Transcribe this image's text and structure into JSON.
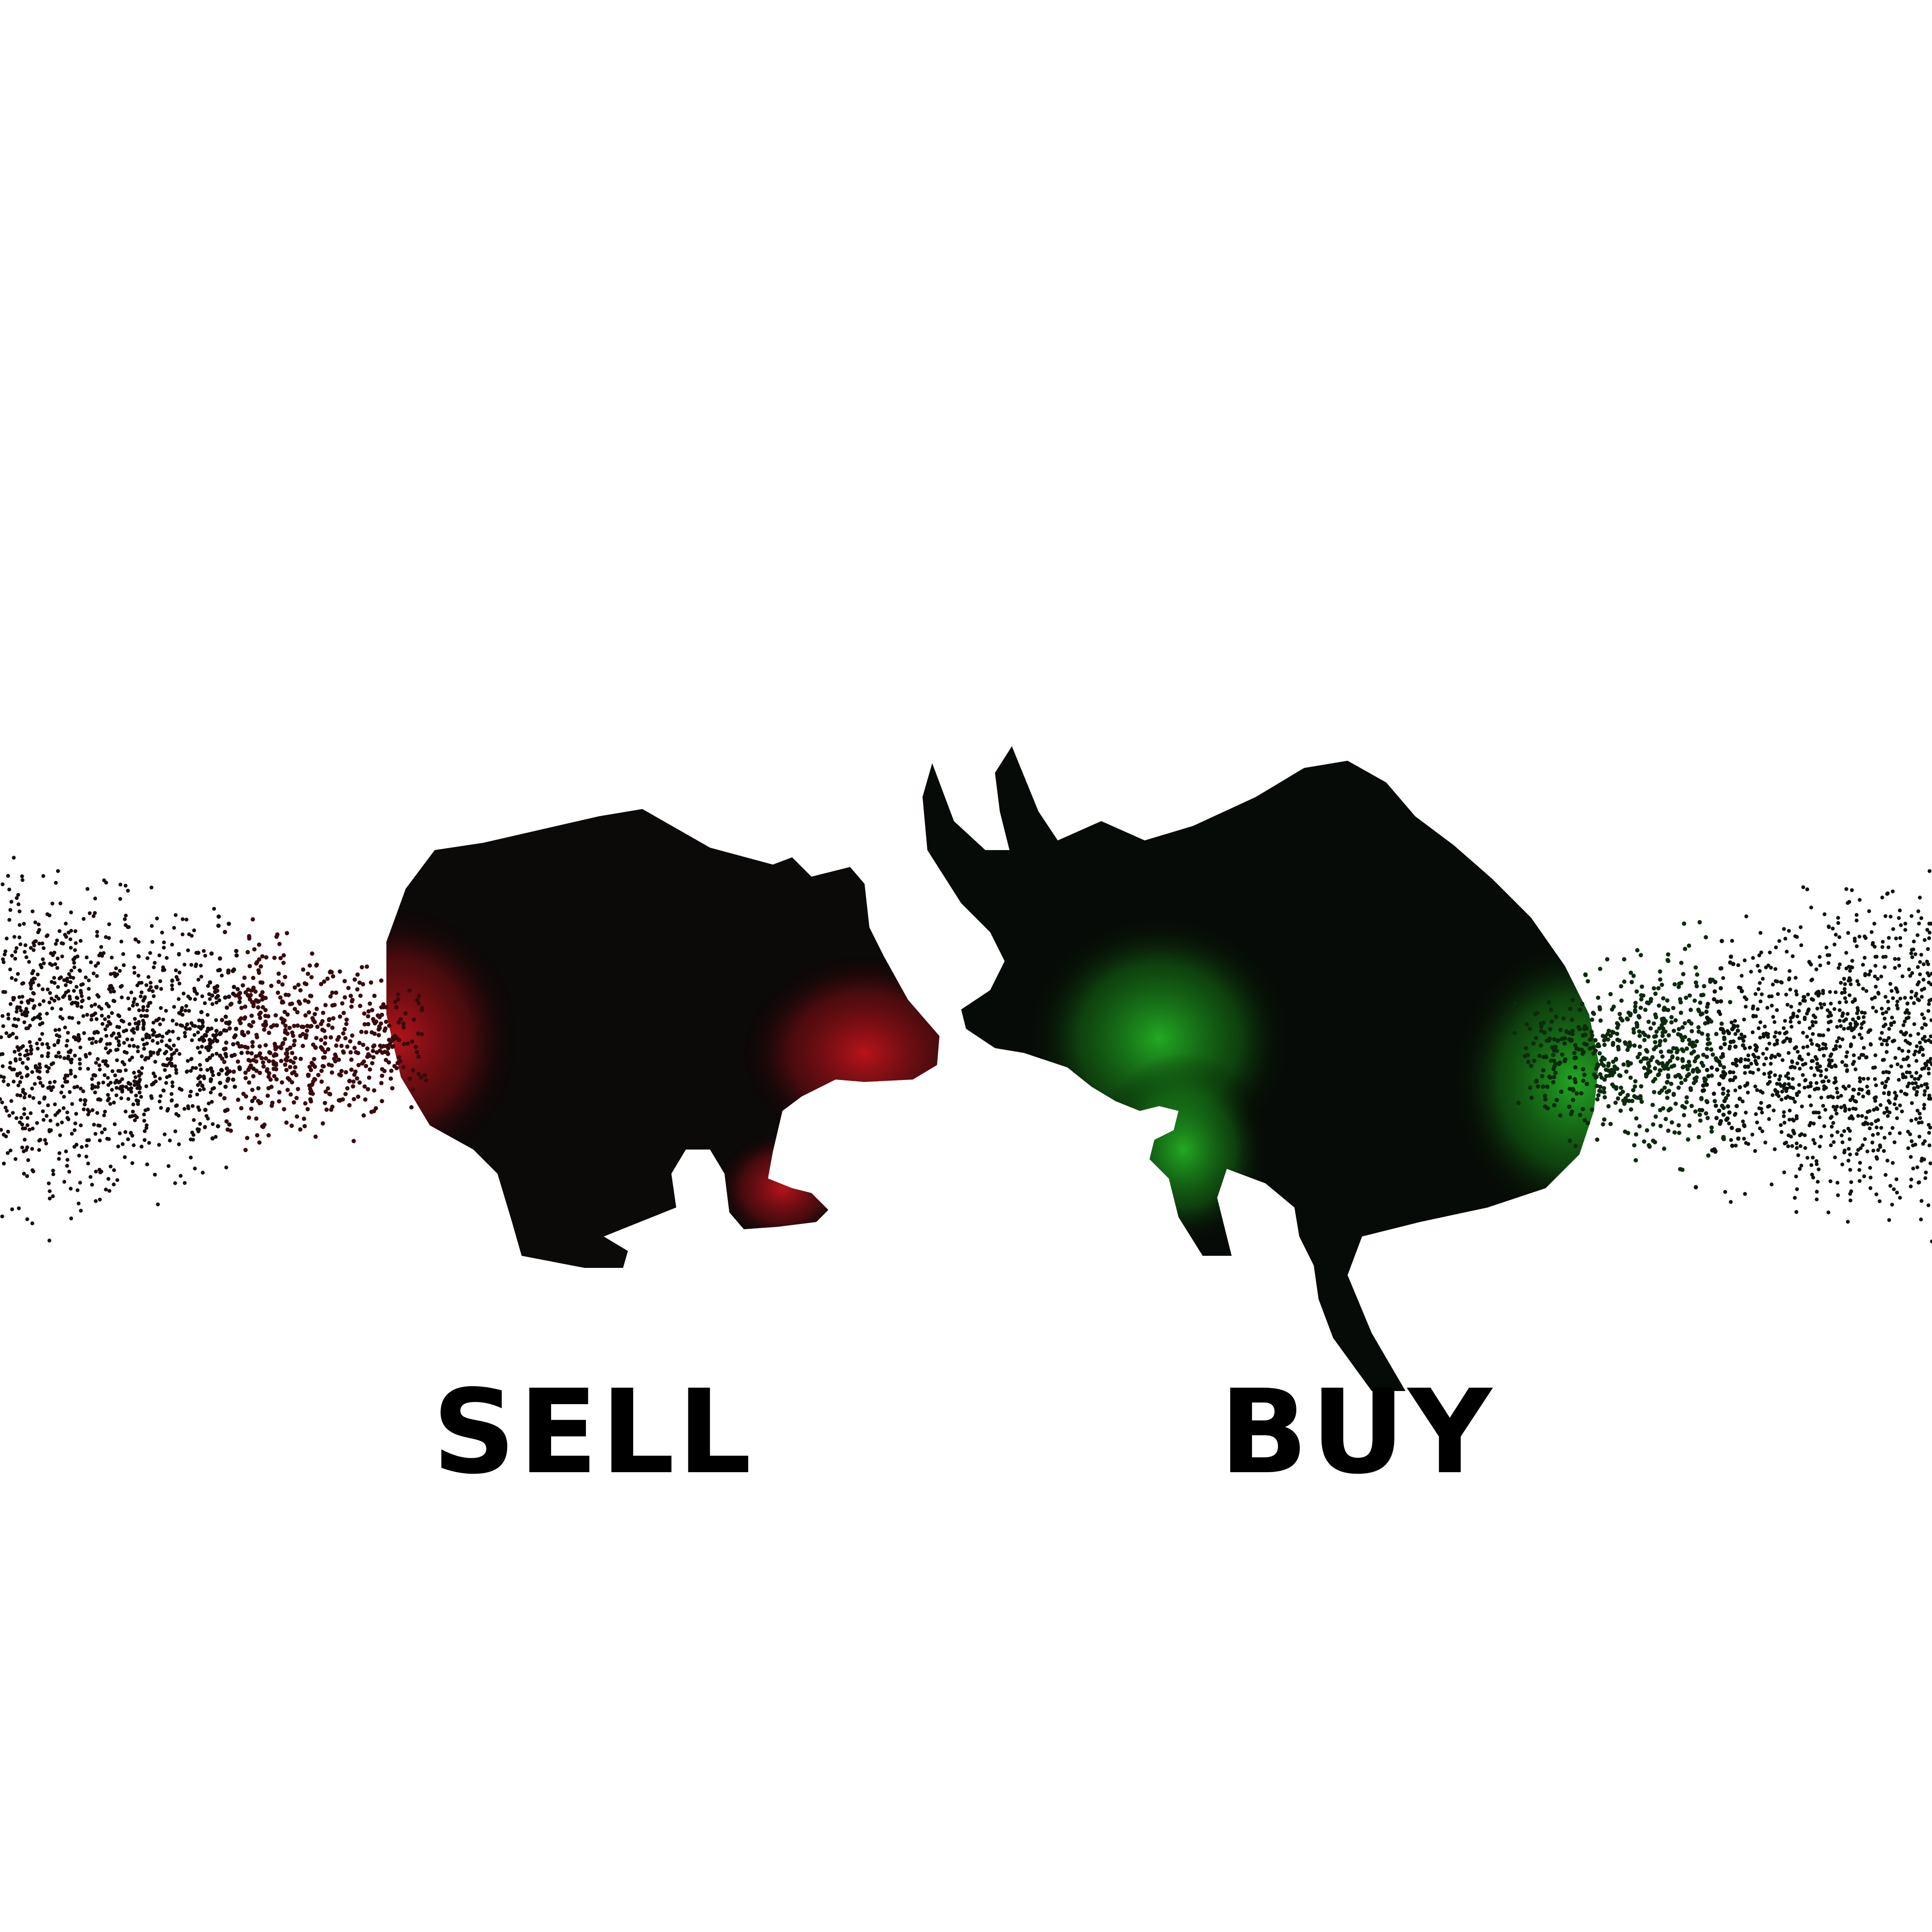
{
  "labels": {
    "sell": "SELL",
    "buy": "BUY"
  },
  "figures": {
    "bear_icon": "bear-silhouette",
    "bull_icon": "bull-silhouette"
  },
  "colors": {
    "background": "#ffffff",
    "text": "#000000",
    "bear_accent": "#c0141c",
    "bull_accent": "#1f9a1f",
    "particle": "#111111"
  }
}
